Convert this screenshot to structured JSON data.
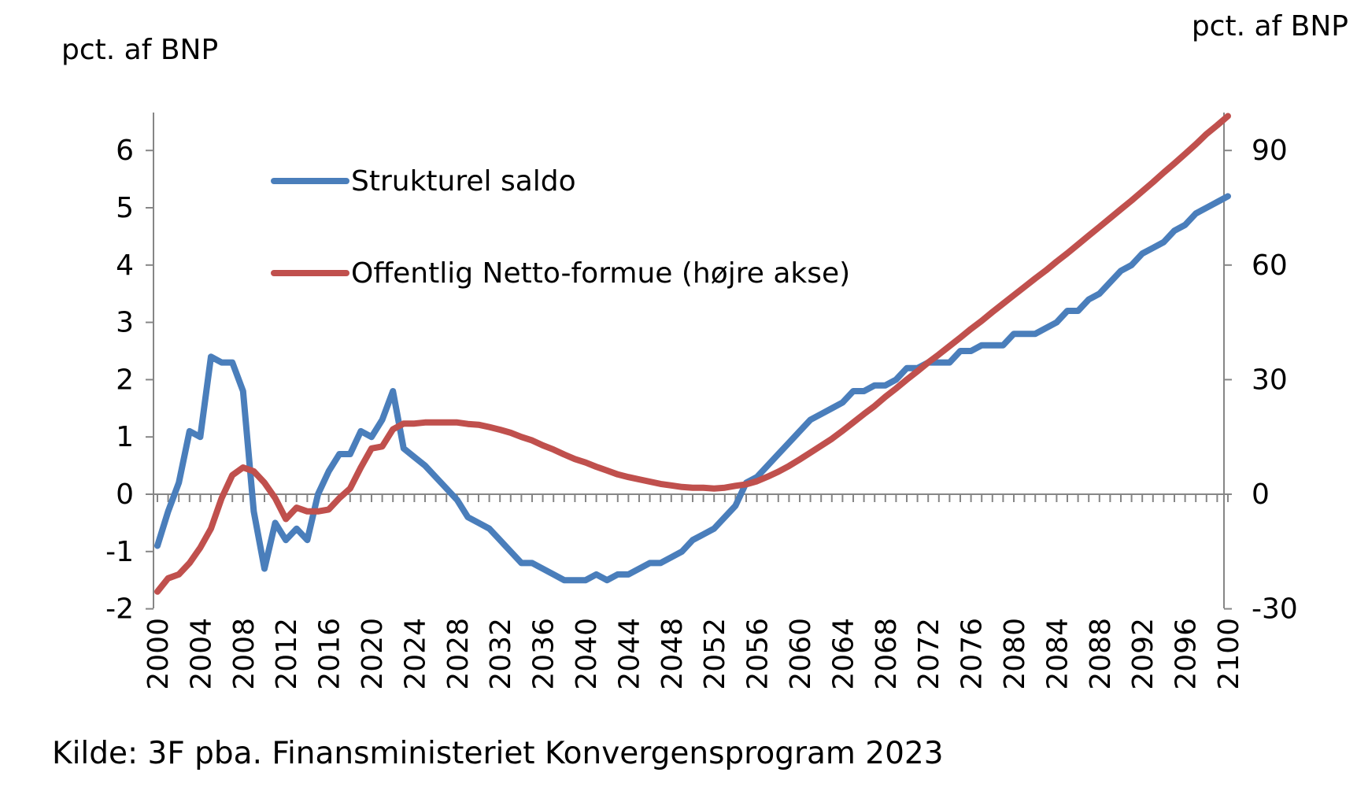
{
  "chart_data": {
    "type": "line",
    "left_axis_title": "pct. af BNP",
    "right_axis_title": "pct. af BNP",
    "y_left": {
      "ylim": [
        -2,
        6.5
      ],
      "ticks": [
        -2,
        -1,
        0,
        1,
        2,
        3,
        4,
        5,
        6
      ]
    },
    "y_right": {
      "ylim": [
        -30,
        97.5
      ],
      "ticks": [
        -30,
        0,
        30,
        60,
        90
      ]
    },
    "x_axis": {
      "xlim": [
        2000,
        2100
      ],
      "ticks": [
        2000,
        2004,
        2008,
        2012,
        2016,
        2020,
        2024,
        2028,
        2032,
        2036,
        2040,
        2044,
        2048,
        2052,
        2056,
        2060,
        2064,
        2068,
        2072,
        2076,
        2080,
        2084,
        2088,
        2092,
        2096,
        2100
      ]
    },
    "grid": false,
    "legend_position": "upper-left-inside",
    "series": [
      {
        "name": "Strukturel saldo",
        "axis": "left",
        "color": "#4a7ebb",
        "points": [
          [
            2000,
            -0.9
          ],
          [
            2001,
            -0.3
          ],
          [
            2002,
            0.2
          ],
          [
            2003,
            1.1
          ],
          [
            2004,
            1.0
          ],
          [
            2005,
            2.4
          ],
          [
            2006,
            2.3
          ],
          [
            2007,
            2.3
          ],
          [
            2008,
            1.8
          ],
          [
            2009,
            -0.3
          ],
          [
            2010,
            -1.3
          ],
          [
            2011,
            -0.5
          ],
          [
            2012,
            -0.8
          ],
          [
            2013,
            -0.6
          ],
          [
            2014,
            -0.8
          ],
          [
            2015,
            0.0
          ],
          [
            2016,
            0.4
          ],
          [
            2017,
            0.7
          ],
          [
            2018,
            0.7
          ],
          [
            2019,
            1.1
          ],
          [
            2020,
            1.0
          ],
          [
            2021,
            1.3
          ],
          [
            2022,
            1.8
          ],
          [
            2023,
            0.8
          ],
          [
            2024,
            0.65
          ],
          [
            2025,
            0.5
          ],
          [
            2026,
            0.3
          ],
          [
            2027,
            0.1
          ],
          [
            2028,
            -0.1
          ],
          [
            2029,
            -0.4
          ],
          [
            2030,
            -0.5
          ],
          [
            2031,
            -0.6
          ],
          [
            2032,
            -0.8
          ],
          [
            2033,
            -1.0
          ],
          [
            2034,
            -1.2
          ],
          [
            2035,
            -1.2
          ],
          [
            2036,
            -1.3
          ],
          [
            2037,
            -1.4
          ],
          [
            2038,
            -1.5
          ],
          [
            2039,
            -1.5
          ],
          [
            2040,
            -1.5
          ],
          [
            2041,
            -1.4
          ],
          [
            2042,
            -1.5
          ],
          [
            2043,
            -1.4
          ],
          [
            2044,
            -1.4
          ],
          [
            2045,
            -1.3
          ],
          [
            2046,
            -1.2
          ],
          [
            2047,
            -1.2
          ],
          [
            2048,
            -1.1
          ],
          [
            2049,
            -1.0
          ],
          [
            2050,
            -0.8
          ],
          [
            2051,
            -0.7
          ],
          [
            2052,
            -0.6
          ],
          [
            2053,
            -0.4
          ],
          [
            2054,
            -0.2
          ],
          [
            2055,
            0.2
          ],
          [
            2056,
            0.3
          ],
          [
            2057,
            0.5
          ],
          [
            2058,
            0.7
          ],
          [
            2059,
            0.9
          ],
          [
            2060,
            1.1
          ],
          [
            2061,
            1.3
          ],
          [
            2062,
            1.4
          ],
          [
            2063,
            1.5
          ],
          [
            2064,
            1.6
          ],
          [
            2065,
            1.8
          ],
          [
            2066,
            1.8
          ],
          [
            2067,
            1.9
          ],
          [
            2068,
            1.9
          ],
          [
            2069,
            2.0
          ],
          [
            2070,
            2.2
          ],
          [
            2071,
            2.2
          ],
          [
            2072,
            2.3
          ],
          [
            2073,
            2.3
          ],
          [
            2074,
            2.3
          ],
          [
            2075,
            2.5
          ],
          [
            2076,
            2.5
          ],
          [
            2077,
            2.6
          ],
          [
            2078,
            2.6
          ],
          [
            2079,
            2.6
          ],
          [
            2080,
            2.8
          ],
          [
            2081,
            2.8
          ],
          [
            2082,
            2.8
          ],
          [
            2083,
            2.9
          ],
          [
            2084,
            3.0
          ],
          [
            2085,
            3.2
          ],
          [
            2086,
            3.2
          ],
          [
            2087,
            3.4
          ],
          [
            2088,
            3.5
          ],
          [
            2089,
            3.7
          ],
          [
            2090,
            3.9
          ],
          [
            2091,
            4.0
          ],
          [
            2092,
            4.2
          ],
          [
            2093,
            4.3
          ],
          [
            2094,
            4.4
          ],
          [
            2095,
            4.6
          ],
          [
            2096,
            4.7
          ],
          [
            2097,
            4.9
          ],
          [
            2098,
            5.0
          ],
          [
            2099,
            5.1
          ],
          [
            2100,
            5.2
          ]
        ]
      },
      {
        "name": "Offentlig Netto-formue (højre akse)",
        "axis": "right",
        "color": "#c0504d",
        "points": [
          [
            2000,
            -25.5
          ],
          [
            2001,
            -22
          ],
          [
            2002,
            -21
          ],
          [
            2003,
            -18
          ],
          [
            2004,
            -14
          ],
          [
            2005,
            -9
          ],
          [
            2006,
            -1
          ],
          [
            2007,
            5
          ],
          [
            2008,
            7
          ],
          [
            2009,
            6
          ],
          [
            2010,
            3
          ],
          [
            2011,
            -1
          ],
          [
            2012,
            -6.5
          ],
          [
            2013,
            -3.5
          ],
          [
            2014,
            -4.5
          ],
          [
            2015,
            -4.5
          ],
          [
            2016,
            -4
          ],
          [
            2017,
            -1
          ],
          [
            2018,
            1.5
          ],
          [
            2019,
            7
          ],
          [
            2020,
            12
          ],
          [
            2021,
            12.5
          ],
          [
            2022,
            17
          ],
          [
            2023,
            18.5
          ],
          [
            2024,
            18.5
          ],
          [
            2025,
            18.8
          ],
          [
            2026,
            18.8
          ],
          [
            2027,
            18.8
          ],
          [
            2028,
            18.8
          ],
          [
            2029,
            18.4
          ],
          [
            2030,
            18.2
          ],
          [
            2031,
            17.6
          ],
          [
            2032,
            16.9
          ],
          [
            2033,
            16.1
          ],
          [
            2034,
            15
          ],
          [
            2035,
            14.1
          ],
          [
            2036,
            12.8
          ],
          [
            2037,
            11.7
          ],
          [
            2038,
            10.4
          ],
          [
            2039,
            9.2
          ],
          [
            2040,
            8.3
          ],
          [
            2041,
            7.2
          ],
          [
            2042,
            6.2
          ],
          [
            2043,
            5.2
          ],
          [
            2044,
            4.5
          ],
          [
            2045,
            3.9
          ],
          [
            2046,
            3.3
          ],
          [
            2047,
            2.7
          ],
          [
            2048,
            2.3
          ],
          [
            2049,
            1.9
          ],
          [
            2050,
            1.7
          ],
          [
            2051,
            1.7
          ],
          [
            2052,
            1.5
          ],
          [
            2053,
            1.7
          ],
          [
            2054,
            2.2
          ],
          [
            2055,
            2.6
          ],
          [
            2056,
            3.4
          ],
          [
            2057,
            4.6
          ],
          [
            2058,
            5.9
          ],
          [
            2059,
            7.4
          ],
          [
            2060,
            9.1
          ],
          [
            2061,
            10.9
          ],
          [
            2062,
            12.7
          ],
          [
            2063,
            14.5
          ],
          [
            2064,
            16.6
          ],
          [
            2065,
            18.8
          ],
          [
            2066,
            21
          ],
          [
            2067,
            23.1
          ],
          [
            2068,
            25.5
          ],
          [
            2069,
            27.7
          ],
          [
            2070,
            30
          ],
          [
            2071,
            32.2
          ],
          [
            2072,
            34.5
          ],
          [
            2073,
            36.6
          ],
          [
            2074,
            38.8
          ],
          [
            2075,
            41
          ],
          [
            2076,
            43.3
          ],
          [
            2077,
            45.4
          ],
          [
            2078,
            47.7
          ],
          [
            2079,
            49.9
          ],
          [
            2080,
            52.1
          ],
          [
            2081,
            54.3
          ],
          [
            2082,
            56.5
          ],
          [
            2083,
            58.6
          ],
          [
            2084,
            60.9
          ],
          [
            2085,
            63.1
          ],
          [
            2086,
            65.4
          ],
          [
            2087,
            67.7
          ],
          [
            2088,
            70
          ],
          [
            2089,
            72.3
          ],
          [
            2090,
            74.6
          ],
          [
            2091,
            76.9
          ],
          [
            2092,
            79.3
          ],
          [
            2093,
            81.7
          ],
          [
            2094,
            84.2
          ],
          [
            2095,
            86.6
          ],
          [
            2096,
            89.1
          ],
          [
            2097,
            91.6
          ],
          [
            2098,
            94.3
          ],
          [
            2099,
            96.6
          ],
          [
            2100,
            99
          ]
        ]
      }
    ]
  },
  "source_text": "Kilde: 3F pba. Finansministeriet Konvergensprogram 2023"
}
